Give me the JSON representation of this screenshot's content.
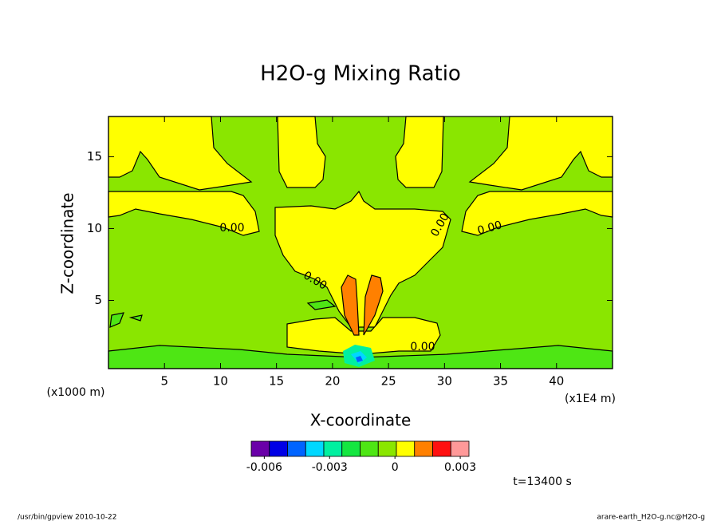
{
  "chart_data": {
    "type": "contour",
    "title": "H2O-g Mixing Ratio",
    "xlabel": "X-coordinate",
    "ylabel": "Z-coordinate",
    "x_unit": "(x1E4 m)",
    "y_unit": "(x1000 m)",
    "xlim": [
      0,
      45
    ],
    "ylim": [
      0.25,
      17.8
    ],
    "xticks": [
      5,
      10,
      15,
      20,
      25,
      30,
      35,
      40
    ],
    "yticks": [
      5,
      10,
      15
    ],
    "contour_labels": [
      "0.00",
      "0.00",
      "0.00",
      "0.00",
      "0.00"
    ],
    "colorbar": {
      "colors": [
        "#6a00a8",
        "#0000e6",
        "#0064ff",
        "#00d8ff",
        "#00f0a0",
        "#14e640",
        "#4ee614",
        "#8ae600",
        "#ffff00",
        "#ff8000",
        "#ff1010",
        "#ff9999"
      ],
      "lim": [
        -0.0066,
        0.0034
      ],
      "ticks": [
        -0.006,
        -0.003,
        0,
        0.003
      ]
    },
    "time_label": "t=13400 s",
    "footer_left": "/usr/bin/gpview  2010-10-22",
    "footer_right": "arare-earth_H2O-g.nc@H2O-g"
  }
}
